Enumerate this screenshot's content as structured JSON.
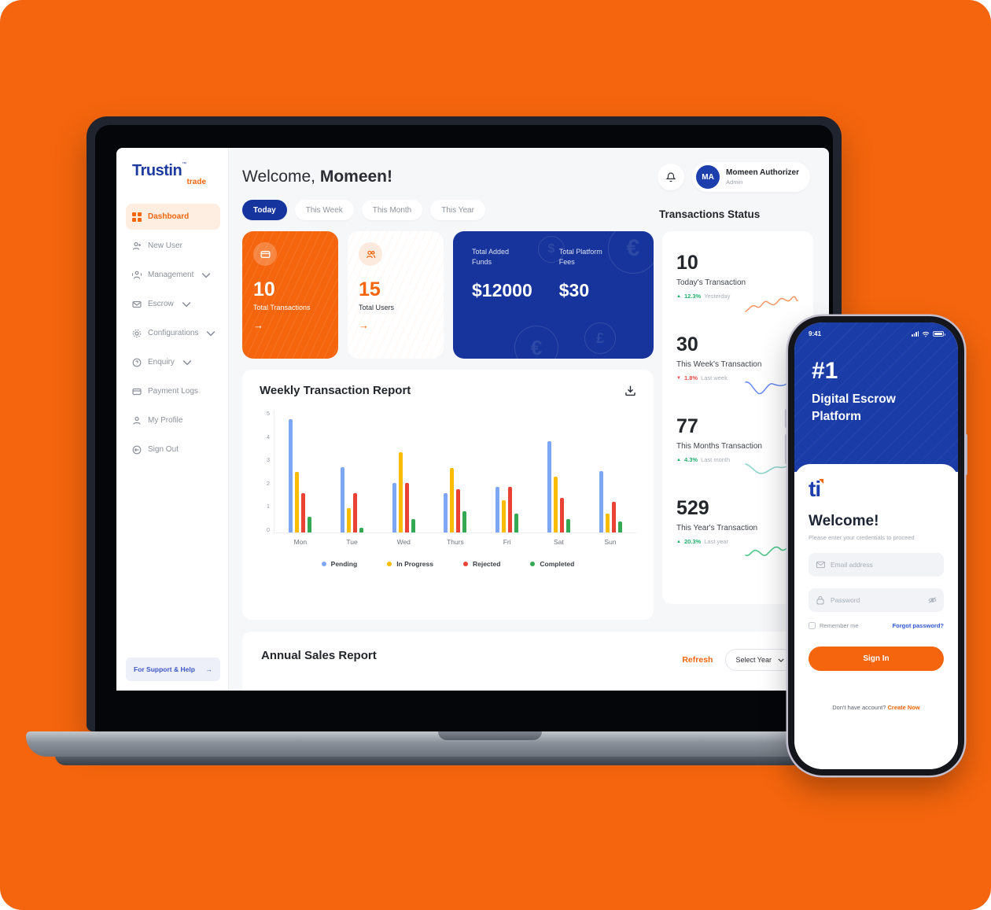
{
  "colors": {
    "accent_orange": "#F4650D",
    "primary_blue": "#16349B",
    "up_green": "#1fae6e",
    "down_red": "#ee4b4b"
  },
  "laptop": {
    "sidebar": {
      "logo": {
        "brand": "Trustin",
        "tm": "™",
        "sub": "trade"
      },
      "items": [
        {
          "label": "Dashboard",
          "icon": "grid-icon",
          "active": true
        },
        {
          "label": "New User",
          "icon": "user-add-icon"
        },
        {
          "label": "Management",
          "icon": "users-icon",
          "chevron": true
        },
        {
          "label": "Escrow",
          "icon": "escrow-icon",
          "chevron": true
        },
        {
          "label": "Configurations",
          "icon": "gear-icon",
          "chevron": true
        },
        {
          "label": "Enquiry",
          "icon": "help-icon",
          "chevron": true
        },
        {
          "label": "Payment Logs",
          "icon": "card-icon"
        },
        {
          "label": "My Profile",
          "icon": "profile-icon"
        },
        {
          "label": "Sign Out",
          "icon": "signout-icon"
        }
      ],
      "support": {
        "label": "For Support & Help",
        "arrow": "→"
      }
    },
    "header": {
      "welcome_prefix": "Welcome,",
      "welcome_name": "Momeen!",
      "user": {
        "initials": "MA",
        "name": "Momeen Authorizer",
        "role": "Admin"
      }
    },
    "tabs": [
      {
        "label": "Today",
        "active": true
      },
      {
        "label": "This Week"
      },
      {
        "label": "This Month"
      },
      {
        "label": "This Year"
      }
    ],
    "summary_cards": {
      "transactions": {
        "value": "10",
        "label": "Total Transactions",
        "arrow": "→"
      },
      "users": {
        "value": "15",
        "label": "Total Users",
        "arrow": "→"
      },
      "funds": {
        "left_label": "Total Added Funds",
        "left_value": "$12000",
        "right_label": "Total Platform Fees",
        "right_value": "$30",
        "watermarks": [
          "$",
          "€",
          "£"
        ]
      }
    },
    "transactions_status": {
      "title": "Transactions Status",
      "items": [
        {
          "value": "10",
          "label": "Today's Transaction",
          "delta": "12.3%",
          "direction": "up",
          "period": "Yesterday",
          "spark_color": "#f59a6b"
        },
        {
          "value": "30",
          "label": "This Week's Transaction",
          "delta": "1.8%",
          "direction": "down",
          "period": "Last week",
          "spark_color": "#6b8cf5"
        },
        {
          "value": "77",
          "label": "This Months Transaction",
          "delta": "4.3%",
          "direction": "up",
          "period": "Last month",
          "spark_color": "#8fd4cb"
        },
        {
          "value": "529",
          "label": "This Year's Transaction",
          "delta": "20.3%",
          "direction": "up",
          "period": "Last year",
          "spark_color": "#4fc98a"
        }
      ]
    },
    "weekly_report": {
      "title": "Weekly Transaction Report"
    },
    "annual_report": {
      "title": "Annual Sales Report",
      "refresh_label": "Refresh",
      "year_select": "Select Year"
    }
  },
  "chart_data": {
    "type": "bar",
    "title": "Weekly Transaction Report",
    "categories": [
      "Mon",
      "Tue",
      "Wed",
      "Thurs",
      "Fri",
      "Sat",
      "Sun"
    ],
    "series": [
      {
        "name": "Pending",
        "color": "#7da7f4",
        "values": [
          4.6,
          2.65,
          2.0,
          1.6,
          1.85,
          3.7,
          2.5
        ]
      },
      {
        "name": "In Progress",
        "color": "#fbbc05",
        "values": [
          2.45,
          1.0,
          3.25,
          2.6,
          1.3,
          2.25,
          0.75
        ]
      },
      {
        "name": "Rejected",
        "color": "#ea4335",
        "values": [
          1.6,
          1.6,
          2.0,
          1.75,
          1.85,
          1.4,
          1.25
        ]
      },
      {
        "name": "Completed",
        "color": "#34a853",
        "values": [
          0.65,
          0.2,
          0.55,
          0.85,
          0.75,
          0.55,
          0.45
        ]
      }
    ],
    "xlabel": "",
    "ylabel": "",
    "ylim": [
      0,
      5
    ],
    "yticks": [
      0,
      1,
      2,
      3,
      4,
      5
    ],
    "grid": false,
    "legend_position": "bottom"
  },
  "phone": {
    "status_bar": {
      "time": "9:41"
    },
    "hero": {
      "rank": "#1",
      "title_line1": "Digital Escrow",
      "title_line2": "Platform"
    },
    "login": {
      "logo_text": "ti",
      "welcome": "Welcome!",
      "subtitle": "Please enter your credentials to proceed",
      "email_placeholder": "Email address",
      "password_placeholder": "Password",
      "remember_label": "Remember me",
      "forgot_label": "Forgot password?",
      "sign_in_label": "Sign In",
      "footer_text": "Don't have account?",
      "create_label": "Create Now"
    }
  }
}
